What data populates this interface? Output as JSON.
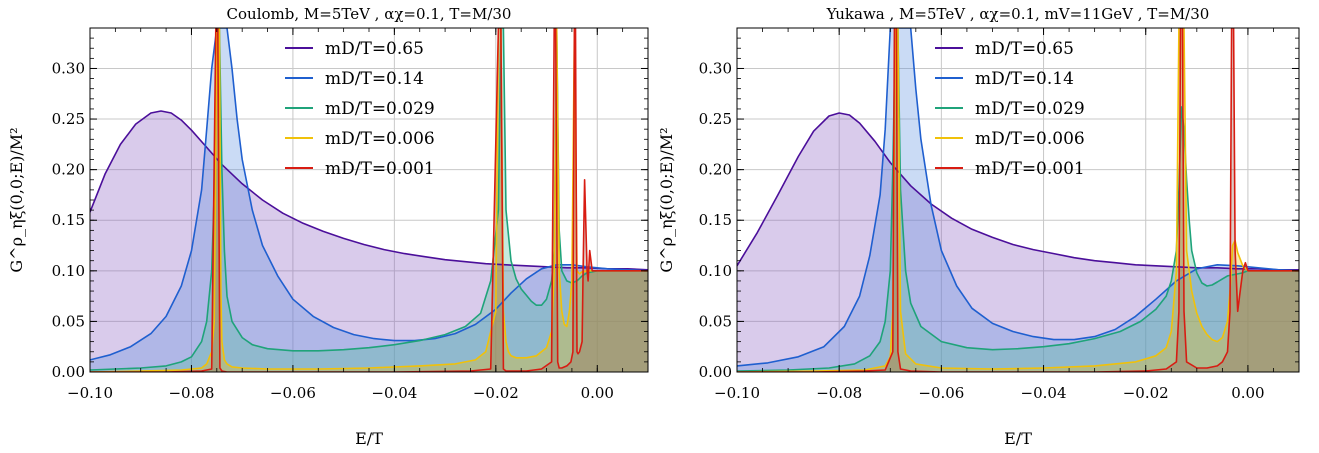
{
  "chart_data": [
    {
      "type": "line",
      "title": "Coulomb, M=5TeV , αχ=0.1, T=M/30",
      "xlabel": "E/T",
      "ylabel": "G^ρ_ηξ(0,0;E)/M²",
      "xlim": [
        -0.1,
        0.01
      ],
      "ylim": [
        0.0,
        0.34
      ],
      "xticks": [
        "−0.10",
        "−0.08",
        "−0.06",
        "−0.04",
        "−0.02",
        "0.00"
      ],
      "yticks": [
        "0.00",
        "0.05",
        "0.10",
        "0.15",
        "0.20",
        "0.25",
        "0.30"
      ],
      "grid": true,
      "legend_position": "top-center",
      "series": [
        {
          "name": "mD/T=0.65",
          "color": "#4b0f9a",
          "fill": "#8a5cc2",
          "x": [
            -0.1,
            -0.097,
            -0.094,
            -0.091,
            -0.088,
            -0.086,
            -0.084,
            -0.082,
            -0.08,
            -0.077,
            -0.074,
            -0.07,
            -0.066,
            -0.062,
            -0.058,
            -0.054,
            -0.05,
            -0.046,
            -0.042,
            -0.038,
            -0.034,
            -0.03,
            -0.026,
            -0.022,
            -0.018,
            -0.014,
            -0.01,
            -0.006,
            -0.002,
            0.002,
            0.006,
            0.01
          ],
          "y": [
            0.158,
            0.196,
            0.225,
            0.245,
            0.256,
            0.258,
            0.256,
            0.249,
            0.239,
            0.222,
            0.205,
            0.186,
            0.17,
            0.157,
            0.147,
            0.139,
            0.132,
            0.126,
            0.121,
            0.117,
            0.114,
            0.111,
            0.109,
            0.107,
            0.106,
            0.105,
            0.104,
            0.103,
            0.103,
            0.102,
            0.102,
            0.101
          ]
        },
        {
          "name": "mD/T=0.14",
          "color": "#1f5fcf",
          "fill": "#5a8ee0",
          "x": [
            -0.1,
            -0.096,
            -0.092,
            -0.088,
            -0.085,
            -0.082,
            -0.08,
            -0.078,
            -0.077,
            -0.076,
            -0.075,
            -0.0745,
            -0.074,
            -0.073,
            -0.072,
            -0.071,
            -0.07,
            -0.068,
            -0.066,
            -0.063,
            -0.06,
            -0.056,
            -0.052,
            -0.048,
            -0.044,
            -0.04,
            -0.036,
            -0.032,
            -0.028,
            -0.024,
            -0.02,
            -0.017,
            -0.014,
            -0.011,
            -0.008,
            -0.005,
            -0.002,
            0.002,
            0.006,
            0.01
          ],
          "y": [
            0.012,
            0.017,
            0.025,
            0.038,
            0.055,
            0.085,
            0.12,
            0.18,
            0.24,
            0.3,
            0.34,
            0.34,
            0.34,
            0.34,
            0.3,
            0.25,
            0.21,
            0.16,
            0.125,
            0.095,
            0.072,
            0.055,
            0.044,
            0.037,
            0.033,
            0.031,
            0.031,
            0.033,
            0.038,
            0.047,
            0.062,
            0.078,
            0.092,
            0.102,
            0.106,
            0.106,
            0.104,
            0.102,
            0.101,
            0.1
          ]
        },
        {
          "name": "mD/T=0.029",
          "color": "#1fa37a",
          "fill": "#4fbf98",
          "x": [
            -0.1,
            -0.09,
            -0.085,
            -0.082,
            -0.08,
            -0.078,
            -0.077,
            -0.076,
            -0.0755,
            -0.075,
            -0.0745,
            -0.074,
            -0.0735,
            -0.073,
            -0.072,
            -0.07,
            -0.068,
            -0.065,
            -0.06,
            -0.055,
            -0.05,
            -0.045,
            -0.04,
            -0.035,
            -0.03,
            -0.026,
            -0.023,
            -0.021,
            -0.0195,
            -0.019,
            -0.0185,
            -0.018,
            -0.017,
            -0.016,
            -0.015,
            -0.014,
            -0.013,
            -0.012,
            -0.011,
            -0.01,
            -0.009,
            -0.0085,
            -0.008,
            -0.0075,
            -0.007,
            -0.006,
            -0.005,
            -0.004,
            -0.003,
            -0.002,
            0.0,
            0.004,
            0.01
          ],
          "y": [
            0.002,
            0.004,
            0.006,
            0.01,
            0.015,
            0.03,
            0.05,
            0.1,
            0.18,
            0.34,
            0.34,
            0.2,
            0.12,
            0.075,
            0.05,
            0.034,
            0.027,
            0.023,
            0.021,
            0.021,
            0.022,
            0.024,
            0.027,
            0.031,
            0.037,
            0.045,
            0.058,
            0.09,
            0.16,
            0.34,
            0.34,
            0.16,
            0.11,
            0.092,
            0.082,
            0.076,
            0.07,
            0.066,
            0.066,
            0.072,
            0.09,
            0.12,
            0.34,
            0.14,
            0.1,
            0.09,
            0.088,
            0.09,
            0.095,
            0.098,
            0.1,
            0.1,
            0.1
          ]
        },
        {
          "name": "mD/T=0.006",
          "color": "#f0c10a",
          "fill": "#f0c10a",
          "x": [
            -0.1,
            -0.09,
            -0.082,
            -0.078,
            -0.077,
            -0.076,
            -0.0755,
            -0.075,
            -0.0745,
            -0.0742,
            -0.074,
            -0.0735,
            -0.073,
            -0.072,
            -0.07,
            -0.065,
            -0.055,
            -0.045,
            -0.035,
            -0.028,
            -0.024,
            -0.022,
            -0.02,
            -0.0195,
            -0.019,
            -0.0185,
            -0.018,
            -0.0175,
            -0.017,
            -0.016,
            -0.014,
            -0.012,
            -0.01,
            -0.009,
            -0.0085,
            -0.008,
            -0.0075,
            -0.007,
            -0.0065,
            -0.006,
            -0.0055,
            -0.005,
            -0.0045,
            -0.004,
            -0.0035,
            -0.003,
            -0.002,
            0.0,
            0.01
          ],
          "y": [
            0.0,
            0.001,
            0.002,
            0.004,
            0.008,
            0.02,
            0.05,
            0.34,
            0.34,
            0.08,
            0.03,
            0.012,
            0.008,
            0.005,
            0.004,
            0.003,
            0.003,
            0.004,
            0.006,
            0.008,
            0.012,
            0.02,
            0.06,
            0.34,
            0.34,
            0.06,
            0.03,
            0.02,
            0.016,
            0.014,
            0.014,
            0.016,
            0.024,
            0.04,
            0.1,
            0.34,
            0.1,
            0.06,
            0.047,
            0.045,
            0.06,
            0.09,
            0.34,
            0.1,
            0.097,
            0.099,
            0.1,
            0.1,
            0.1
          ]
        },
        {
          "name": "mD/T=0.001",
          "color": "#d81c12",
          "fill": "#8e5f52",
          "x": [
            -0.1,
            -0.085,
            -0.078,
            -0.076,
            -0.0752,
            -0.0748,
            -0.0744,
            -0.074,
            -0.073,
            -0.07,
            -0.06,
            -0.04,
            -0.025,
            -0.021,
            -0.0195,
            -0.019,
            -0.0185,
            -0.018,
            -0.017,
            -0.014,
            -0.011,
            -0.009,
            -0.0085,
            -0.0082,
            -0.0078,
            -0.0075,
            -0.007,
            -0.006,
            -0.0052,
            -0.0048,
            -0.0045,
            -0.0043,
            -0.004,
            -0.0038,
            -0.0035,
            -0.003,
            -0.0028,
            -0.0025,
            -0.002,
            -0.0018,
            -0.0015,
            -0.001,
            0.0,
            0.01
          ],
          "y": [
            0.0,
            0.0,
            0.001,
            0.003,
            0.34,
            0.34,
            0.004,
            0.001,
            0.0,
            0.0,
            0.0,
            0.0,
            0.001,
            0.003,
            0.34,
            0.34,
            0.003,
            0.001,
            0.001,
            0.001,
            0.003,
            0.01,
            0.34,
            0.34,
            0.01,
            0.004,
            0.004,
            0.006,
            0.01,
            0.02,
            0.34,
            0.34,
            0.02,
            0.018,
            0.02,
            0.03,
            0.1,
            0.19,
            0.1,
            0.09,
            0.12,
            0.1,
            0.1,
            0.1
          ]
        }
      ]
    },
    {
      "type": "line",
      "title": "Yukawa , M=5TeV , αχ=0.1, mV=11GeV , T=M/30",
      "xlabel": "E/T",
      "ylabel": "G^ρ_ηξ(0,0;E)/M²",
      "xlim": [
        -0.1,
        0.01
      ],
      "ylim": [
        0.0,
        0.34
      ],
      "xticks": [
        "−0.10",
        "−0.08",
        "−0.06",
        "−0.04",
        "−0.02",
        "0.00"
      ],
      "yticks": [
        "0.00",
        "0.05",
        "0.10",
        "0.15",
        "0.20",
        "0.25",
        "0.30"
      ],
      "grid": true,
      "legend_position": "top-center",
      "series": [
        {
          "name": "mD/T=0.65",
          "color": "#4b0f9a",
          "fill": "#8a5cc2",
          "x": [
            -0.1,
            -0.096,
            -0.092,
            -0.088,
            -0.085,
            -0.082,
            -0.08,
            -0.078,
            -0.076,
            -0.073,
            -0.07,
            -0.066,
            -0.062,
            -0.058,
            -0.054,
            -0.05,
            -0.046,
            -0.042,
            -0.038,
            -0.034,
            -0.03,
            -0.026,
            -0.022,
            -0.018,
            -0.014,
            -0.01,
            -0.006,
            -0.002,
            0.002,
            0.006,
            0.01
          ],
          "y": [
            0.105,
            0.138,
            0.175,
            0.213,
            0.238,
            0.253,
            0.256,
            0.254,
            0.246,
            0.228,
            0.207,
            0.184,
            0.166,
            0.152,
            0.141,
            0.133,
            0.126,
            0.121,
            0.117,
            0.113,
            0.11,
            0.108,
            0.106,
            0.105,
            0.104,
            0.103,
            0.103,
            0.102,
            0.102,
            0.101,
            0.101
          ]
        },
        {
          "name": "mD/T=0.14",
          "color": "#1f5fcf",
          "fill": "#5a8ee0",
          "x": [
            -0.1,
            -0.094,
            -0.088,
            -0.083,
            -0.079,
            -0.076,
            -0.074,
            -0.072,
            -0.071,
            -0.07,
            -0.069,
            -0.068,
            -0.067,
            -0.066,
            -0.065,
            -0.064,
            -0.062,
            -0.06,
            -0.057,
            -0.054,
            -0.05,
            -0.046,
            -0.042,
            -0.038,
            -0.034,
            -0.03,
            -0.026,
            -0.022,
            -0.018,
            -0.014,
            -0.01,
            -0.006,
            -0.002,
            0.002,
            0.006,
            0.01
          ],
          "y": [
            0.006,
            0.009,
            0.015,
            0.025,
            0.045,
            0.075,
            0.115,
            0.175,
            0.24,
            0.34,
            0.34,
            0.34,
            0.34,
            0.34,
            0.28,
            0.23,
            0.165,
            0.12,
            0.085,
            0.063,
            0.048,
            0.04,
            0.035,
            0.032,
            0.032,
            0.035,
            0.042,
            0.055,
            0.072,
            0.09,
            0.102,
            0.106,
            0.105,
            0.103,
            0.101,
            0.1
          ]
        },
        {
          "name": "mD/T=0.029",
          "color": "#1fa37a",
          "fill": "#4fbf98",
          "x": [
            -0.1,
            -0.09,
            -0.082,
            -0.077,
            -0.074,
            -0.072,
            -0.071,
            -0.07,
            -0.0695,
            -0.069,
            -0.0685,
            -0.068,
            -0.067,
            -0.066,
            -0.064,
            -0.06,
            -0.055,
            -0.05,
            -0.045,
            -0.04,
            -0.035,
            -0.03,
            -0.025,
            -0.021,
            -0.018,
            -0.016,
            -0.015,
            -0.014,
            -0.0135,
            -0.013,
            -0.0125,
            -0.012,
            -0.0115,
            -0.011,
            -0.01,
            -0.009,
            -0.008,
            -0.007,
            -0.006,
            -0.005,
            -0.004,
            -0.003,
            -0.002,
            -0.001,
            0.0,
            0.004,
            0.01
          ],
          "y": [
            0.001,
            0.002,
            0.004,
            0.008,
            0.016,
            0.03,
            0.05,
            0.1,
            0.2,
            0.34,
            0.34,
            0.18,
            0.1,
            0.068,
            0.045,
            0.03,
            0.024,
            0.022,
            0.023,
            0.025,
            0.028,
            0.033,
            0.04,
            0.05,
            0.062,
            0.075,
            0.09,
            0.12,
            0.18,
            0.262,
            0.24,
            0.19,
            0.15,
            0.12,
            0.098,
            0.088,
            0.085,
            0.086,
            0.089,
            0.092,
            0.095,
            0.096,
            0.097,
            0.098,
            0.1,
            0.1,
            0.1
          ]
        },
        {
          "name": "mD/T=0.006",
          "color": "#f0c10a",
          "fill": "#f0c10a",
          "x": [
            -0.1,
            -0.085,
            -0.075,
            -0.071,
            -0.07,
            -0.0695,
            -0.069,
            -0.0685,
            -0.068,
            -0.067,
            -0.065,
            -0.06,
            -0.05,
            -0.04,
            -0.03,
            -0.022,
            -0.018,
            -0.016,
            -0.015,
            -0.014,
            -0.0135,
            -0.013,
            -0.0125,
            -0.012,
            -0.011,
            -0.01,
            -0.009,
            -0.008,
            -0.007,
            -0.006,
            -0.005,
            -0.004,
            -0.0035,
            -0.003,
            -0.0025,
            -0.002,
            -0.001,
            0.0,
            0.004,
            0.01
          ],
          "y": [
            0.0,
            0.001,
            0.002,
            0.006,
            0.015,
            0.06,
            0.34,
            0.34,
            0.06,
            0.018,
            0.008,
            0.004,
            0.003,
            0.004,
            0.006,
            0.01,
            0.016,
            0.024,
            0.04,
            0.1,
            0.34,
            0.34,
            0.34,
            0.12,
            0.08,
            0.058,
            0.045,
            0.037,
            0.032,
            0.03,
            0.034,
            0.05,
            0.08,
            0.125,
            0.13,
            0.118,
            0.105,
            0.1,
            0.1,
            0.1
          ]
        },
        {
          "name": "mD/T=0.001",
          "color": "#d81c12",
          "fill": "#8e5f52",
          "x": [
            -0.1,
            -0.085,
            -0.075,
            -0.071,
            -0.0695,
            -0.0692,
            -0.0688,
            -0.0685,
            -0.068,
            -0.066,
            -0.06,
            -0.05,
            -0.04,
            -0.03,
            -0.02,
            -0.016,
            -0.014,
            -0.0135,
            -0.0132,
            -0.0128,
            -0.0125,
            -0.012,
            -0.01,
            -0.008,
            -0.006,
            -0.005,
            -0.004,
            -0.0035,
            -0.0032,
            -0.0028,
            -0.0025,
            -0.002,
            -0.0015,
            -0.001,
            -0.0005,
            0.0,
            0.005,
            0.01
          ],
          "y": [
            0.0,
            0.0,
            0.001,
            0.002,
            0.02,
            0.34,
            0.34,
            0.02,
            0.003,
            0.001,
            0.0,
            0.0,
            0.0,
            0.0,
            0.001,
            0.003,
            0.01,
            0.06,
            0.34,
            0.34,
            0.06,
            0.01,
            0.004,
            0.004,
            0.006,
            0.01,
            0.02,
            0.06,
            0.34,
            0.34,
            0.12,
            0.06,
            0.08,
            0.1,
            0.108,
            0.1,
            0.1,
            0.1
          ]
        }
      ]
    }
  ]
}
